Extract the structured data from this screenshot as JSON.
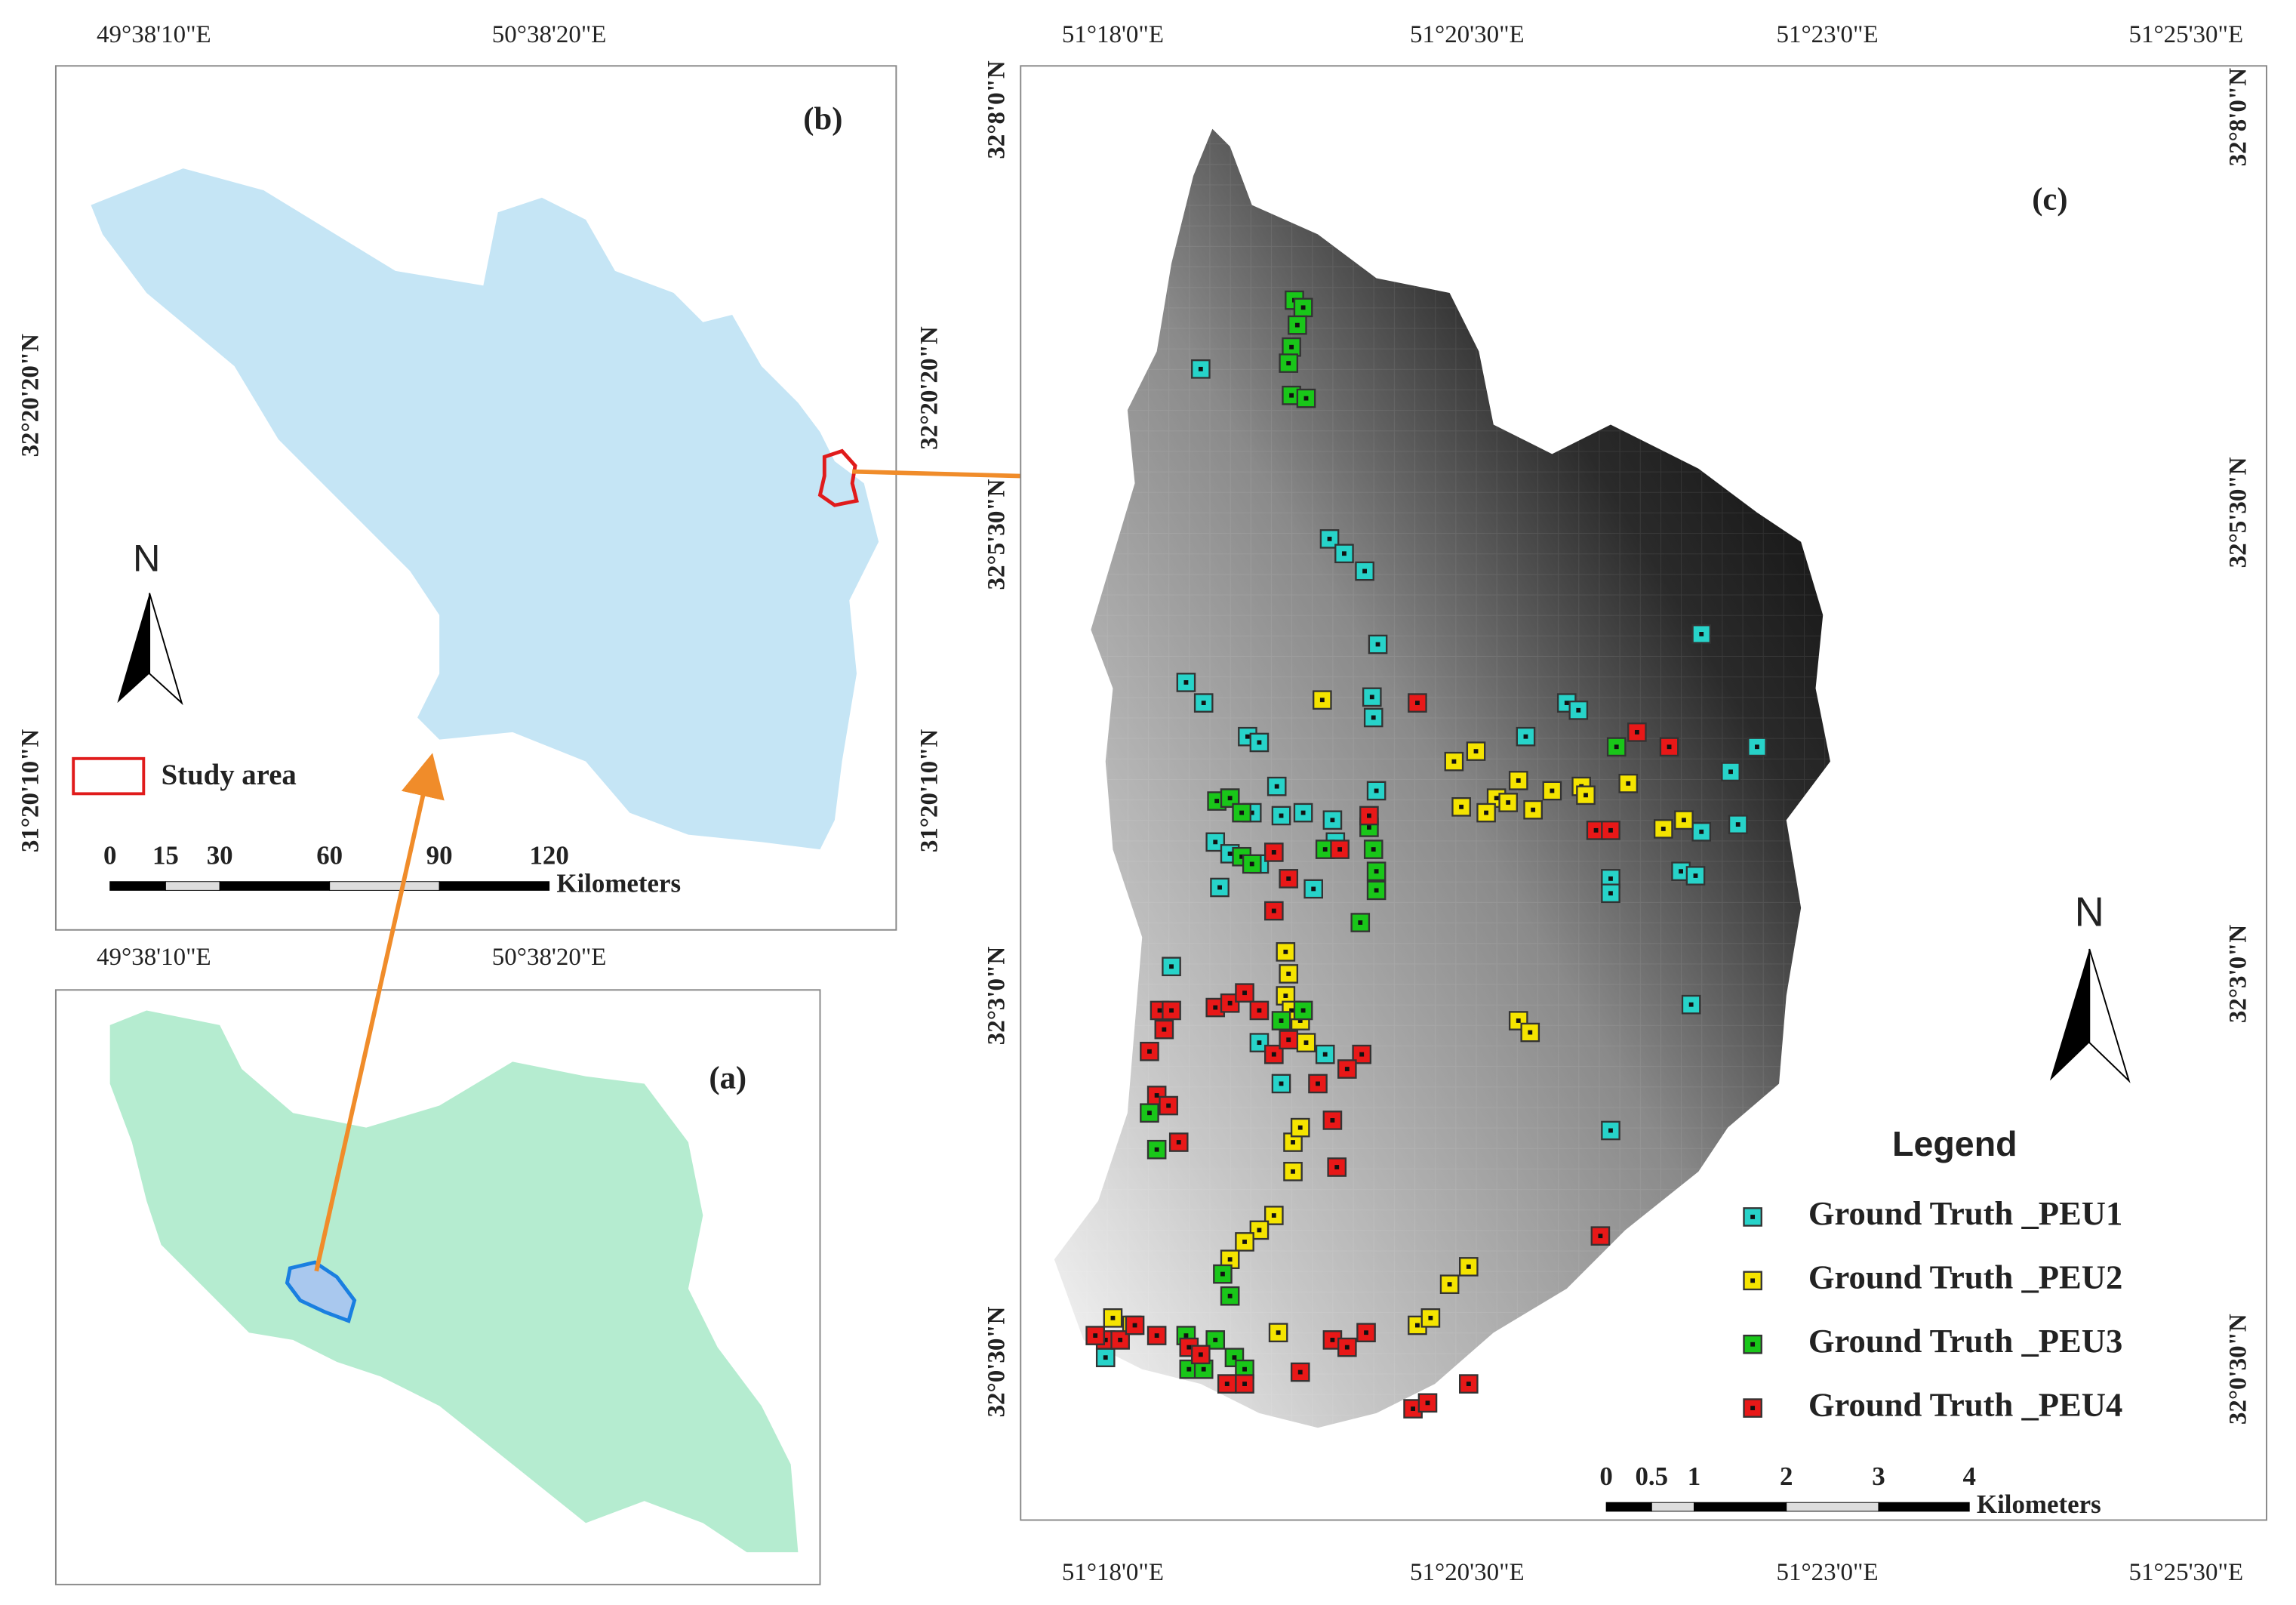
{
  "panel_a": {
    "label": "(a)"
  },
  "panel_b": {
    "label": "(b)",
    "top_labels": [
      "49°38'10\"E",
      "50°38'20\"E"
    ],
    "bottom_labels": [
      "49°38'10\"E",
      "50°38'20\"E"
    ],
    "left_labels": [
      "32°20'20\"N",
      "31°20'10\"N"
    ],
    "right_labels": [
      "32°20'20\"N",
      "31°20'10\"N"
    ],
    "north": "N",
    "legend": "Study area",
    "scale": {
      "ticks": [
        "0",
        "15",
        "30",
        "60",
        "90",
        "120"
      ],
      "unit": "Kilometers"
    }
  },
  "panel_c": {
    "label": "(c)",
    "top_labels": [
      "51°18'0\"E",
      "51°20'30\"E",
      "51°23'0\"E",
      "51°25'30\"E"
    ],
    "bottom_labels": [
      "51°18'0\"E",
      "51°20'30\"E",
      "51°23'0\"E",
      "51°25'30\"E"
    ],
    "left_labels": [
      "32°8'0\"N",
      "32°5'30\"N",
      "32°3'0\"N",
      "32°0'30\"N"
    ],
    "right_labels": [
      "32°8'0\"N",
      "32°5'30\"N",
      "32°3'0\"N",
      "32°0'30\"N"
    ],
    "north": "N",
    "legend": {
      "title": "Legend",
      "items": [
        {
          "name": "Ground Truth _PEU1",
          "color": "#27d3c9"
        },
        {
          "name": "Ground Truth _PEU2",
          "color": "#f5e400"
        },
        {
          "name": "Ground Truth _PEU3",
          "color": "#19c619"
        },
        {
          "name": "Ground Truth _PEU4",
          "color": "#e81818"
        }
      ]
    },
    "scale": {
      "ticks": [
        "0",
        "0.5",
        "1",
        "2",
        "3",
        "4"
      ],
      "unit": "Kilometers"
    }
  }
}
